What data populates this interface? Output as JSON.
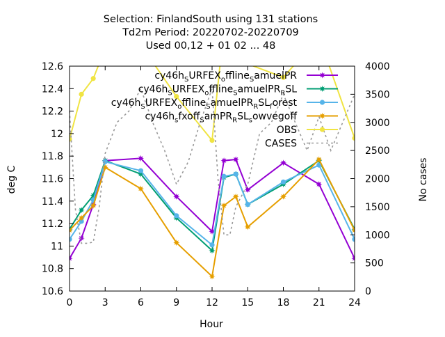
{
  "chart_data": {
    "type": "line",
    "title_lines": [
      "Selection: FinlandSouth using   131 stations",
      "Td2m   Period: 20220702-20220709",
      "Used  00,12  + 01 02 ... 48"
    ],
    "xlabel": "Hour",
    "ylabel": "deg C",
    "y2label": "No cases",
    "xlim": [
      0,
      24
    ],
    "ylim": [
      10.6,
      12.6
    ],
    "y2lim": [
      0,
      4000
    ],
    "x_ticks": [
      "0",
      "3",
      "6",
      "9",
      "12",
      "15",
      "18",
      "21",
      "24"
    ],
    "y_ticks": [
      "10.6",
      "10.8",
      "11",
      "11.2",
      "11.4",
      "11.6",
      "11.8",
      "12",
      "12.2",
      "12.4",
      "12.6"
    ],
    "y2_ticks": [
      "0",
      "500",
      "1000",
      "1500",
      "2000",
      "2500",
      "3000",
      "3500",
      "4000"
    ],
    "legend_position": "top-right",
    "grid": false,
    "series": [
      {
        "name": "cy46h_S URFEX_o ffline_S amuelPR",
        "legend_parts": [
          [
            "cy46h",
            0
          ],
          [
            "S",
            1
          ],
          [
            "URFEX",
            0
          ],
          [
            "o",
            1
          ],
          [
            "ffline",
            0
          ],
          [
            "S",
            1
          ],
          [
            "amuelPR",
            0
          ]
        ],
        "color": "#9400d3",
        "marker": "star",
        "x": [
          0,
          1,
          2,
          3,
          6,
          9,
          12,
          13,
          14,
          15,
          18,
          21,
          24
        ],
        "y": [
          10.89,
          11.07,
          11.37,
          11.76,
          11.78,
          11.44,
          11.13,
          11.76,
          11.77,
          11.5,
          11.74,
          11.55,
          10.89
        ]
      },
      {
        "name": "cy46h_S URFEX_o ffline_S amuelPR_R SL",
        "legend_parts": [
          [
            "cy46h",
            0
          ],
          [
            "S",
            1
          ],
          [
            "URFEX",
            0
          ],
          [
            "o",
            1
          ],
          [
            "ffline",
            0
          ],
          [
            "S",
            1
          ],
          [
            "amuelPR",
            0
          ],
          [
            "R",
            1
          ],
          [
            "SL",
            0
          ]
        ],
        "color": "#009e73",
        "marker": "star",
        "x": [
          0,
          1,
          2,
          3,
          6,
          9,
          12,
          13,
          14,
          15,
          18,
          21,
          24
        ],
        "y": [
          11.15,
          11.32,
          11.45,
          11.76,
          11.64,
          11.25,
          10.96,
          11.61,
          11.64,
          11.37,
          11.55,
          11.76,
          11.15
        ]
      },
      {
        "name": "cy46h_S URFEX_o ffline_S amuelPR_R SL_f orest",
        "legend_parts": [
          [
            "cy46h",
            0
          ],
          [
            "S",
            1
          ],
          [
            "URFEX",
            0
          ],
          [
            "o",
            1
          ],
          [
            "ffline",
            0
          ],
          [
            "S",
            1
          ],
          [
            "amuelPR",
            0
          ],
          [
            "R",
            1
          ],
          [
            "SL",
            0
          ],
          [
            "f",
            1
          ],
          [
            "orest",
            0
          ]
        ],
        "color": "#56b4e9",
        "marker": "circle",
        "x": [
          0,
          1,
          2,
          3,
          6,
          9,
          12,
          13,
          14,
          15,
          18,
          21,
          24
        ],
        "y": [
          11.06,
          11.22,
          11.41,
          11.75,
          11.67,
          11.27,
          11.01,
          11.62,
          11.64,
          11.37,
          11.57,
          11.72,
          11.06
        ]
      },
      {
        "name": "cy46h_s fxoff_S amPR_R SL_s owvegoff",
        "legend_parts": [
          [
            "cy46h",
            0
          ],
          [
            "s",
            1
          ],
          [
            "fxoff",
            0
          ],
          [
            "S",
            1
          ],
          [
            "amPR",
            0
          ],
          [
            "R",
            1
          ],
          [
            "SL",
            0
          ],
          [
            "s",
            1
          ],
          [
            "owvegoff",
            0
          ]
        ],
        "color": "#e69f00",
        "marker": "star",
        "x": [
          0,
          1,
          2,
          3,
          6,
          9,
          12,
          13,
          14,
          15,
          18,
          21,
          24
        ],
        "y": [
          11.14,
          11.25,
          11.36,
          11.7,
          11.51,
          11.03,
          10.73,
          11.36,
          11.44,
          11.17,
          11.44,
          11.77,
          11.14
        ]
      },
      {
        "name": "OBS",
        "legend_parts": [
          [
            "OBS",
            0
          ]
        ],
        "color": "#f0e442",
        "marker": "circle",
        "x": [
          0,
          1,
          2,
          3,
          6,
          9,
          12,
          13,
          14,
          15,
          18,
          21,
          24
        ],
        "y": [
          11.95,
          12.35,
          12.49,
          12.76,
          12.79,
          12.33,
          11.94,
          12.94,
          12.86,
          12.62,
          12.5,
          12.86,
          11.96
        ]
      },
      {
        "name": "CASES",
        "legend_parts": [
          [
            "CASES",
            0
          ]
        ],
        "color": "#999999",
        "marker": "none",
        "dashed": true,
        "axis": "y2",
        "x": [
          0,
          0.5,
          1,
          1.5,
          2,
          2.5,
          3,
          4,
          5,
          6,
          7,
          8,
          9,
          10,
          11,
          12,
          12.5,
          13,
          13.5,
          14,
          15,
          16,
          17,
          18,
          19,
          20,
          21,
          22,
          23,
          24
        ],
        "y": [
          3200,
          1450,
          850,
          850,
          870,
          1500,
          2450,
          3000,
          3200,
          3600,
          3000,
          2500,
          1900,
          2300,
          3000,
          3600,
          2000,
          1000,
          1000,
          1500,
          1900,
          2800,
          3000,
          3500,
          3000,
          2500,
          3100,
          2500,
          3000,
          3500
        ]
      }
    ]
  }
}
